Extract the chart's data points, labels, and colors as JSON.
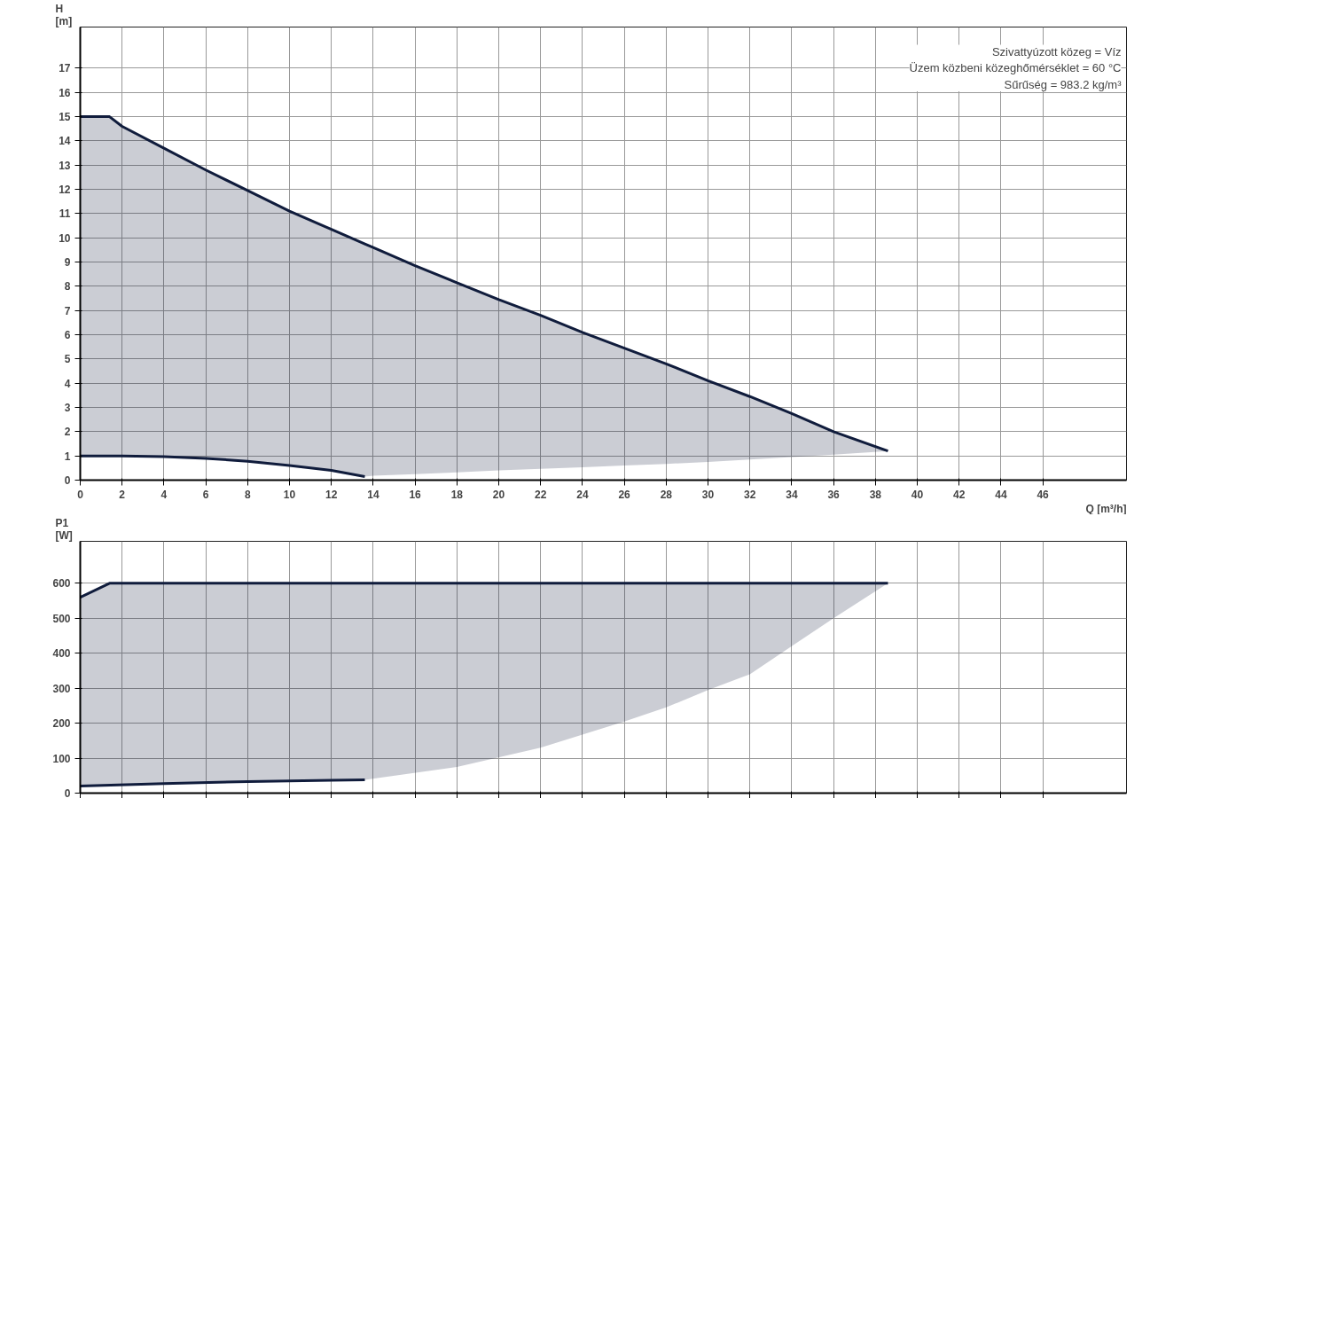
{
  "chart_data": [
    {
      "type": "line",
      "ylabel": "H [m]",
      "xlabel": "Q [m³/h]",
      "xlim": [
        0,
        50
      ],
      "xticks": [
        0,
        2,
        4,
        6,
        8,
        10,
        12,
        14,
        16,
        18,
        20,
        22,
        24,
        26,
        28,
        30,
        32,
        34,
        36,
        38,
        40,
        42,
        44,
        46
      ],
      "ylim": [
        0,
        18.7
      ],
      "yticks": [
        0,
        1,
        2,
        3,
        4,
        5,
        6,
        7,
        8,
        9,
        10,
        11,
        12,
        13,
        14,
        15,
        16,
        17
      ],
      "grid": true,
      "annotations": [
        "Szivattyúzott közeg = Víz",
        "Üzem közbeni közeghőmérséklet = 60 °C",
        "Sűrűség = 983.2 kg/m³"
      ],
      "series": [
        {
          "color": "#101c3c",
          "x": [
            0,
            1.4,
            2,
            4,
            6,
            8,
            10,
            12,
            13.6,
            14,
            16,
            18,
            20,
            22,
            24,
            26,
            28,
            30,
            32,
            34,
            36,
            38.6
          ],
          "values": [
            15,
            15,
            14.6,
            13.7,
            12.8,
            11.95,
            11.1,
            10.35,
            9.75,
            9.6,
            8.85,
            8.15,
            7.45,
            6.8,
            6.1,
            5.45,
            4.8,
            4.1,
            3.45,
            2.75,
            2.0,
            1.2
          ],
          "upper": [
            15,
            15,
            14.6,
            13.7,
            12.8,
            11.95,
            11.1,
            10.35,
            9.75,
            9.6,
            8.85,
            8.15,
            7.45,
            6.8,
            6.1,
            5.45,
            4.8,
            4.1,
            3.45,
            2.75,
            2.0,
            1.2
          ],
          "lower": [
            1,
            1,
            1,
            0.97,
            0.9,
            0.78,
            0.6,
            0.4,
            0.15,
            0.18,
            0.25,
            0.32,
            0.4,
            0.47,
            0.53,
            0.6,
            0.67,
            0.75,
            0.85,
            0.95,
            1.05,
            1.2
          ]
        },
        {
          "color": "#101c3c",
          "x": [
            0,
            2,
            4,
            6,
            8,
            10,
            12,
            13.6
          ],
          "values": [
            1,
            1,
            0.97,
            0.9,
            0.78,
            0.6,
            0.4,
            0.15
          ]
        }
      ]
    },
    {
      "type": "line",
      "ylabel": "P1 [W]",
      "xlim": [
        0,
        50
      ],
      "xticks": [
        0,
        2,
        4,
        6,
        8,
        10,
        12,
        14,
        16,
        18,
        20,
        22,
        24,
        26,
        28,
        30,
        32,
        34,
        36,
        38,
        40,
        42,
        44,
        46
      ],
      "ylim": [
        0,
        720
      ],
      "yticks": [
        0,
        100,
        200,
        300,
        400,
        500,
        600
      ],
      "grid": true,
      "tick_labels": "y",
      "series": [
        {
          "color": "#101c3c",
          "x": [
            0,
            1.4,
            4,
            8,
            12,
            13.6,
            18,
            22,
            26,
            28,
            30,
            32,
            34,
            36,
            38.6
          ],
          "values": [
            560,
            600,
            600,
            600,
            600,
            600,
            600,
            600,
            600,
            600,
            600,
            600,
            600,
            600,
            600
          ],
          "upper": [
            560,
            600,
            600,
            600,
            600,
            600,
            600,
            600,
            600,
            600,
            600,
            600,
            600,
            600,
            600
          ],
          "lower": [
            20,
            23,
            27,
            33,
            37,
            38,
            75,
            130,
            205,
            245,
            295,
            340,
            420,
            500,
            600
          ]
        },
        {
          "color": "#101c3c",
          "x": [
            0,
            4,
            8,
            12,
            13.6
          ],
          "values": [
            20,
            27,
            33,
            37,
            38
          ]
        }
      ]
    }
  ]
}
